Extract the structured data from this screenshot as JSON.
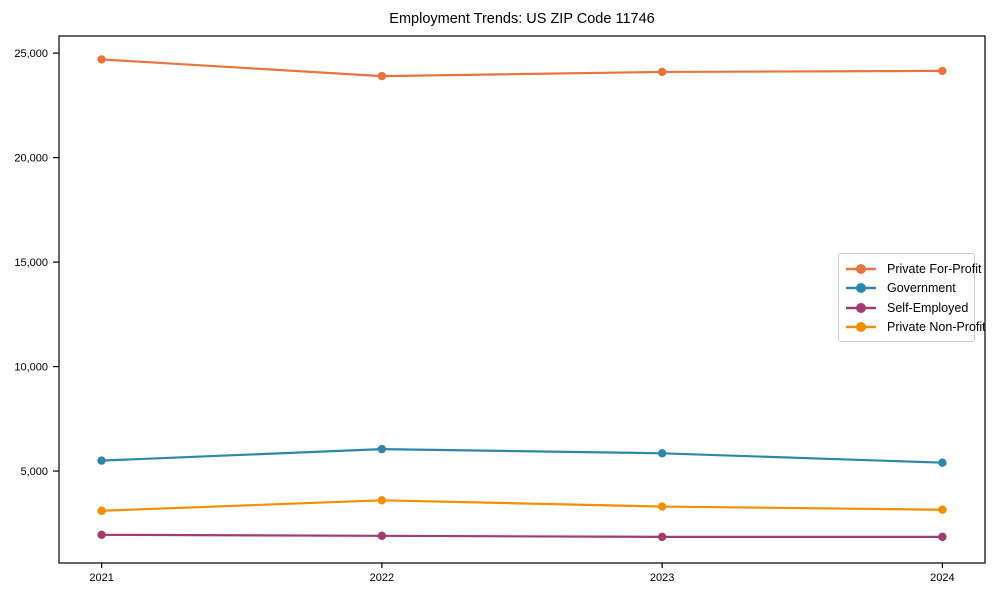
{
  "chart_data": {
    "type": "line",
    "title": "Employment Trends: US ZIP Code 11746",
    "categories": [
      "2021",
      "2022",
      "2023",
      "2024"
    ],
    "series": [
      {
        "name": "Private For-Profit",
        "color": "#E8743B",
        "values": [
          24700,
          23900,
          24100,
          24150
        ]
      },
      {
        "name": "Government",
        "color": "#2E86AB",
        "values": [
          5500,
          6050,
          5850,
          5400
        ]
      },
      {
        "name": "Self-Employed",
        "color": "#A23B72",
        "values": [
          1950,
          1900,
          1850,
          1850
        ]
      },
      {
        "name": "Private Non-Profit",
        "color": "#F18F01",
        "values": [
          3100,
          3600,
          3300,
          3150
        ]
      }
    ],
    "xlabel": "",
    "ylabel": "",
    "ylim": [
      600,
      25820
    ],
    "yticks": [
      5000,
      10000,
      15000,
      20000,
      25000
    ],
    "ytick_labels": [
      "5,000",
      "10,000",
      "15,000",
      "20,000",
      "25,000"
    ],
    "grid": false,
    "legend_position": "right-center",
    "axis_color": "#000000",
    "background_color": "#ffffff"
  }
}
